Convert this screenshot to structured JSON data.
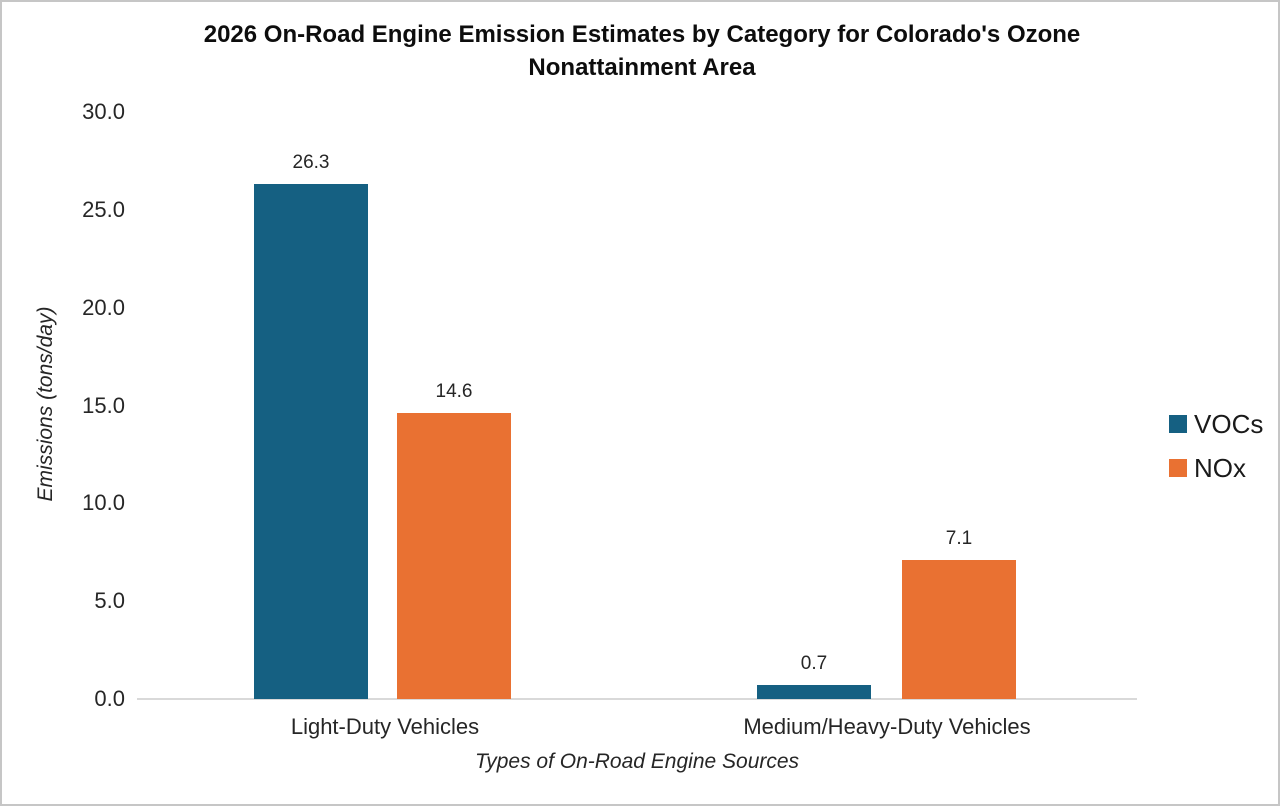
{
  "chart_data": {
    "type": "bar",
    "title": "2026 On-Road Engine Emission Estimates by Category for Colorado's Ozone Nonattainment Area",
    "categories": [
      "Light-Duty Vehicles",
      "Medium/Heavy-Duty Vehicles"
    ],
    "series": [
      {
        "name": "VOCs",
        "color": "#156082",
        "values": [
          26.3,
          0.7
        ],
        "value_labels": [
          "26.3",
          "0.7"
        ]
      },
      {
        "name": "NOx",
        "color": "#E97132",
        "values": [
          14.6,
          7.1
        ],
        "value_labels": [
          "14.6",
          "7.1"
        ]
      }
    ],
    "xlabel": "Types of On-Road Engine Sources",
    "ylabel": "Emissions (tons/day)",
    "ylim": [
      0,
      30
    ],
    "ytick_step": 5,
    "ytick_labels": [
      "0.0",
      "5.0",
      "10.0",
      "15.0",
      "20.0",
      "25.0",
      "30.0"
    ],
    "grid": false,
    "legend_position": "right",
    "axis_line_color": "#d9d9d9"
  }
}
